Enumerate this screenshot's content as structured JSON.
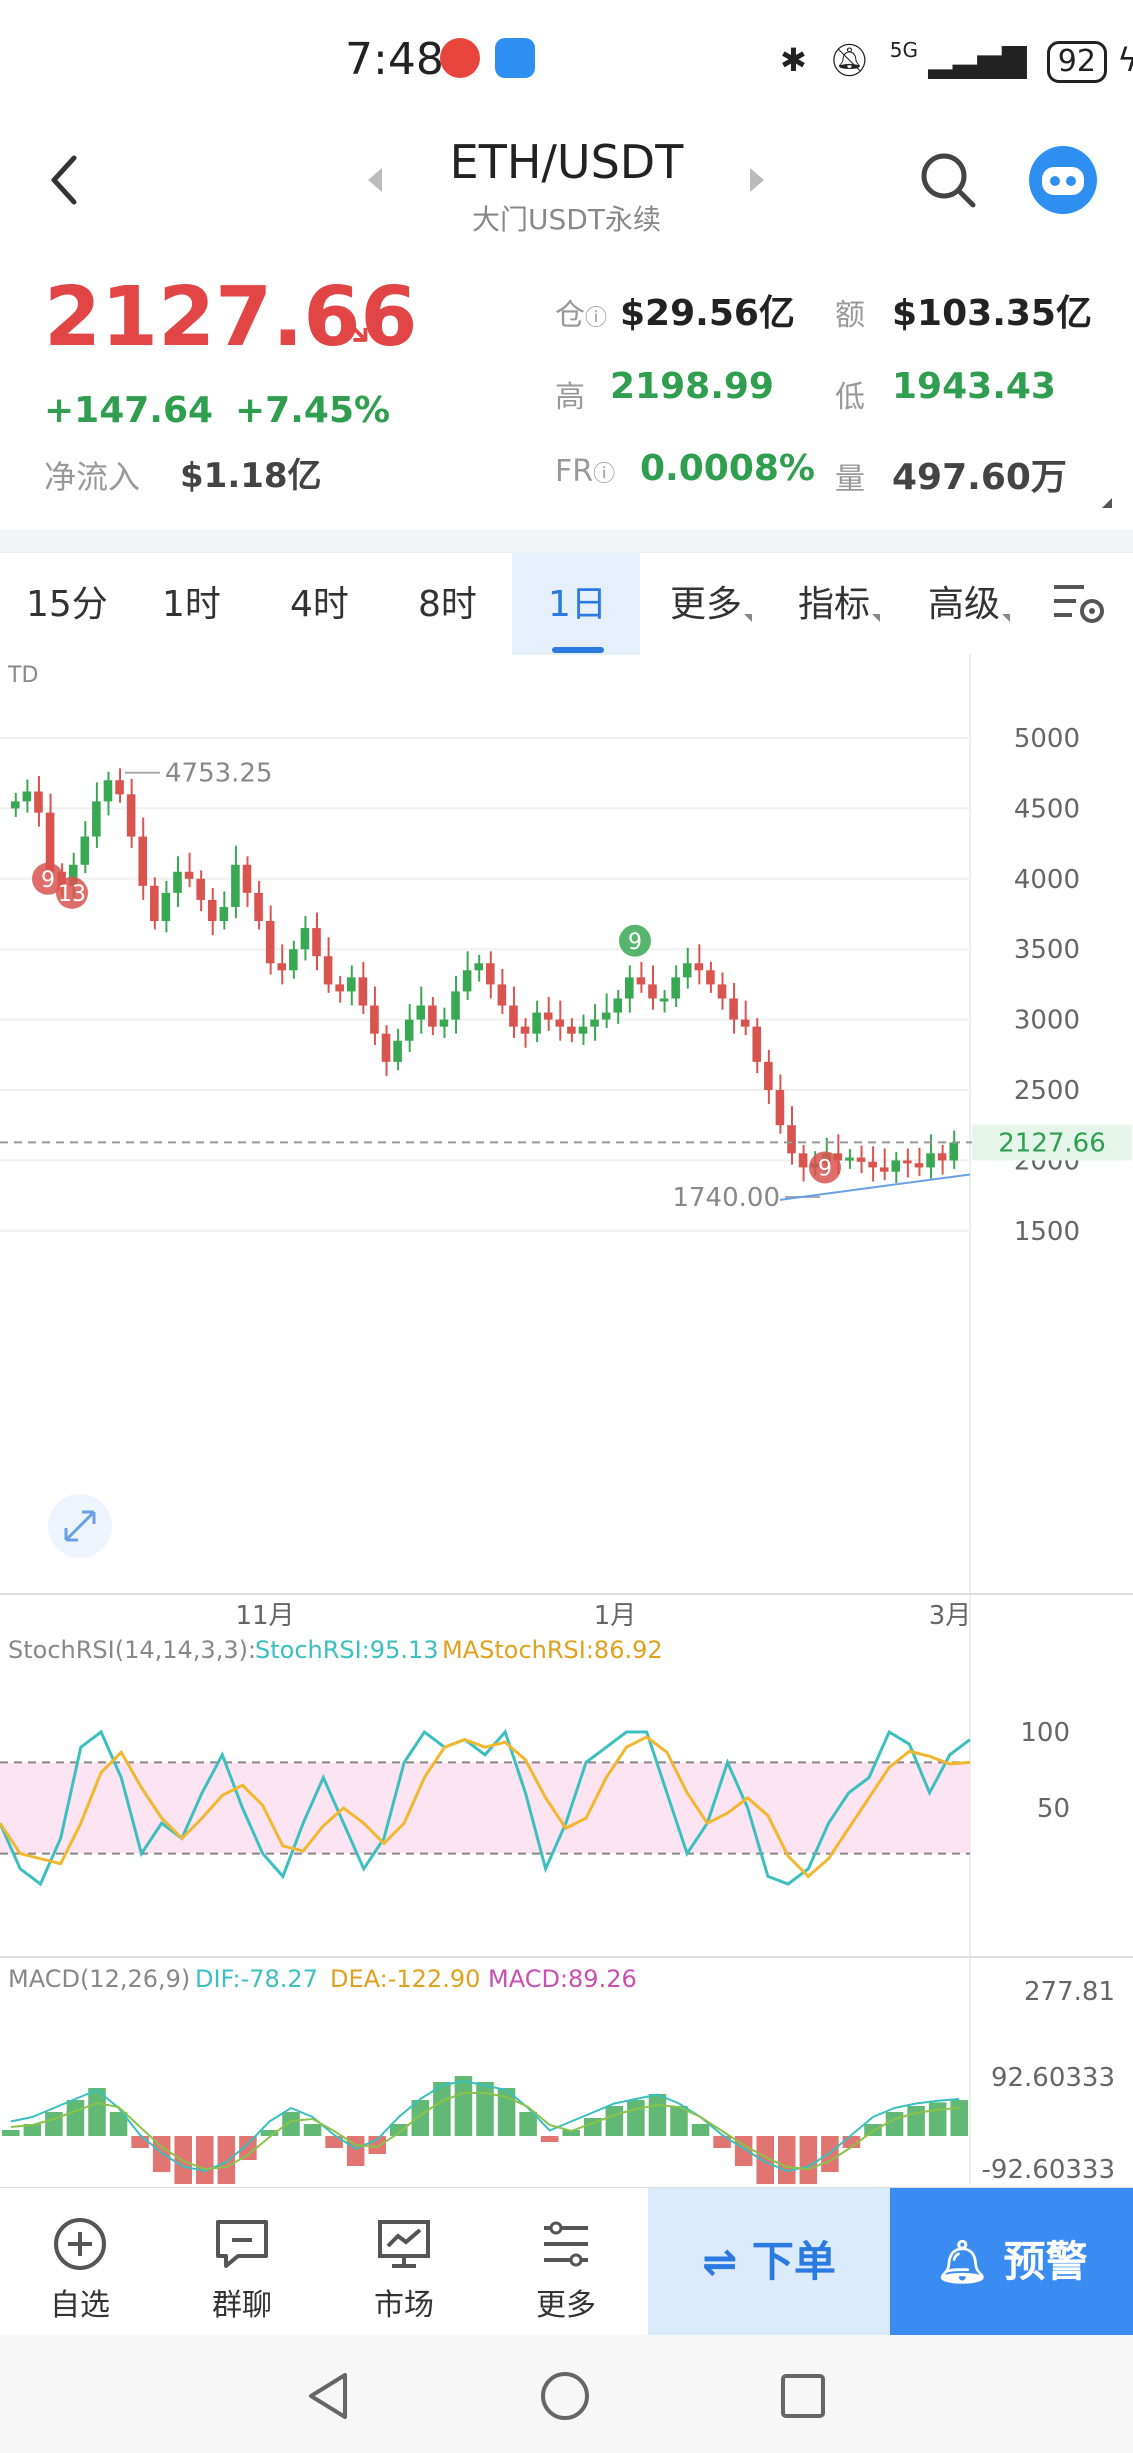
{
  "status_bar": {
    "time": "7:48",
    "network": "5G",
    "battery": "92"
  },
  "header": {
    "pair": "ETH/USDT",
    "exchange": "大门USDT永续"
  },
  "price": {
    "last": "2127.66",
    "change": "+147.64",
    "change_pct": "+7.45%",
    "net_inflow_label": "净流入",
    "net_inflow": "$1.18亿"
  },
  "stats": {
    "oi_label": "仓",
    "oi": "$29.56亿",
    "amount_label": "额",
    "amount": "$103.35亿",
    "high_label": "高",
    "high": "2198.99",
    "low_label": "低",
    "low": "1943.43",
    "fr_label": "FR",
    "fr": "0.0008%",
    "vol_label": "量",
    "vol": "497.60万"
  },
  "tabs": [
    {
      "label": "15分"
    },
    {
      "label": "1时"
    },
    {
      "label": "4时"
    },
    {
      "label": "8时"
    },
    {
      "label": "1日",
      "active": true
    },
    {
      "label": "更多"
    },
    {
      "label": "指标"
    },
    {
      "label": "高级"
    }
  ],
  "chart_data": {
    "type": "candlestick",
    "indicator_label": "TD",
    "y_ticks": [
      5000,
      4500,
      4000,
      3500,
      3000,
      2500,
      2000,
      1500
    ],
    "x_ticks": [
      "11月",
      "1月",
      "3月"
    ],
    "last_price_label": "2127.66",
    "high_annotation": "4753.25",
    "low_annotation": "1740.00",
    "td_markers": [
      "9",
      "13",
      "9",
      "9"
    ],
    "stochrsi": {
      "header": "StochRSI(14,14,3,3):",
      "k_label": "StochRSI:95.13",
      "d_label": "MAStochRSI:86.92",
      "y_ticks": [
        "100",
        "50"
      ],
      "colors": {
        "k": "#3bbfbf",
        "d": "#f2b72e"
      }
    },
    "macd": {
      "header": "MACD(12,26,9)",
      "dif_label": "DIF:-78.27",
      "dea_label": "DEA:-122.90",
      "macd_label": "MACD:89.26",
      "y_ticks": [
        "277.81",
        "92.60333",
        "-92.60333"
      ]
    },
    "colors": {
      "up": "#39a853",
      "down": "#d9534f"
    }
  },
  "bottom_nav": {
    "watchlist": "自选",
    "group_chat": "群聊",
    "market": "市场",
    "more": "更多",
    "order": "⇌ 下单",
    "alert": "预警"
  }
}
